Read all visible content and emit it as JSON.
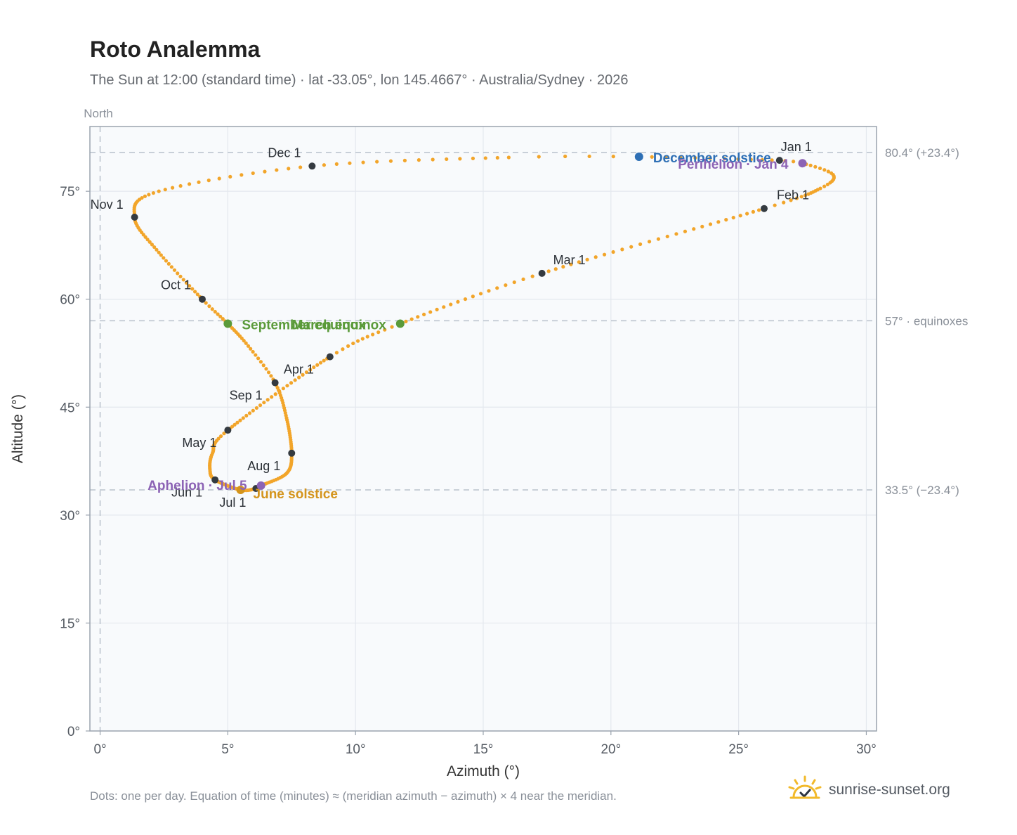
{
  "header": {
    "title": "Roto Analemma",
    "subtitle": "The Sun at 12:00 (standard time) · lat -33.05°, lon 145.4667° · Australia/Sydney · 2026"
  },
  "footer": {
    "note": "Dots: one per day. Equation of time (minutes) ≈ (meridian azimuth − azimuth) × 4 near the meridian.",
    "brand": "sunrise-sunset.org",
    "brand_icon": "sun-logo-icon"
  },
  "colors": {
    "path": "#f2a52a",
    "month_marker": "#343a40",
    "equinox": "#5a9a3a",
    "december_solstice": "#2e6fb5",
    "june_solstice": "#d4941c",
    "aphelion_perihelion": "#8c63b5",
    "plot_bg": "#f8fafc",
    "grid": "#e4e8ee",
    "reference_line": "#b9c1cb"
  },
  "chart_data": {
    "type": "scatter",
    "title": "Roto Analemma",
    "xlabel": "Azimuth (°)",
    "ylabel": "Altitude (°)",
    "xlim": [
      -0.4,
      30.4
    ],
    "ylim": [
      0,
      84
    ],
    "x_ticks": [
      0,
      5,
      10,
      15,
      20,
      25,
      30
    ],
    "x_tick_labels": [
      "0°",
      "5°",
      "10°",
      "15°",
      "20°",
      "25°",
      "30°"
    ],
    "y_ticks": [
      0,
      15,
      30,
      45,
      60,
      75
    ],
    "y_tick_labels": [
      "0°",
      "15°",
      "30°",
      "45°",
      "60°",
      "75°"
    ],
    "grid": true,
    "meridian": {
      "azimuth": 0,
      "label": "North"
    },
    "reference_lines": [
      {
        "altitude": 80.4,
        "label": "80.4° (+23.4°)"
      },
      {
        "altitude": 57,
        "label": "57° · equinoxes"
      },
      {
        "altitude": 33.5,
        "label": "33.5° (−23.4°)"
      }
    ],
    "path_anchors": [
      {
        "day": 1,
        "az": 26.6,
        "alt": 79.3
      },
      {
        "day": 4,
        "az": 27.5,
        "alt": 78.9
      },
      {
        "day": 12,
        "az": 28.7,
        "alt": 77.3
      },
      {
        "day": 20,
        "az": 28.2,
        "alt": 75.4
      },
      {
        "day": 32,
        "az": 26.0,
        "alt": 72.6
      },
      {
        "day": 60,
        "az": 17.3,
        "alt": 63.6
      },
      {
        "day": 79,
        "az": 11.75,
        "alt": 56.6
      },
      {
        "day": 91,
        "az": 9.0,
        "alt": 52.0
      },
      {
        "day": 121,
        "az": 5.0,
        "alt": 41.8
      },
      {
        "day": 135,
        "az": 4.4,
        "alt": 38.6
      },
      {
        "day": 145,
        "az": 4.3,
        "alt": 36.3
      },
      {
        "day": 152,
        "az": 4.5,
        "alt": 34.9
      },
      {
        "day": 172,
        "az": 5.5,
        "alt": 33.5
      },
      {
        "day": 182,
        "az": 6.1,
        "alt": 33.7
      },
      {
        "day": 186,
        "az": 6.3,
        "alt": 34.1
      },
      {
        "day": 200,
        "az": 7.3,
        "alt": 35.8
      },
      {
        "day": 213,
        "az": 7.5,
        "alt": 38.6
      },
      {
        "day": 230,
        "az": 7.3,
        "alt": 43.5
      },
      {
        "day": 244,
        "az": 6.85,
        "alt": 48.4
      },
      {
        "day": 255,
        "az": 5.8,
        "alt": 53.5
      },
      {
        "day": 265,
        "az": 5.0,
        "alt": 56.6
      },
      {
        "day": 274,
        "az": 4.0,
        "alt": 60.0
      },
      {
        "day": 290,
        "az": 2.3,
        "alt": 66.5
      },
      {
        "day": 305,
        "az": 1.35,
        "alt": 71.4
      },
      {
        "day": 320,
        "az": 2.3,
        "alt": 75.0
      },
      {
        "day": 335,
        "az": 8.3,
        "alt": 78.5
      },
      {
        "day": 350,
        "az": 16.0,
        "alt": 79.7
      },
      {
        "day": 355,
        "az": 21.1,
        "alt": 79.8
      },
      {
        "day": 366,
        "az": 26.6,
        "alt": 79.3
      }
    ],
    "month_markers": [
      {
        "label": "Jan 1",
        "az": 26.6,
        "alt": 79.3
      },
      {
        "label": "Feb 1",
        "az": 26.0,
        "alt": 72.6
      },
      {
        "label": "Mar 1",
        "az": 17.3,
        "alt": 63.6
      },
      {
        "label": "Apr 1",
        "az": 9.0,
        "alt": 52.0
      },
      {
        "label": "May 1",
        "az": 5.0,
        "alt": 41.8
      },
      {
        "label": "Jun 1",
        "az": 4.5,
        "alt": 34.9
      },
      {
        "label": "Jul 1",
        "az": 6.1,
        "alt": 33.7
      },
      {
        "label": "Aug 1",
        "az": 7.5,
        "alt": 38.6
      },
      {
        "label": "Sep 1",
        "az": 6.85,
        "alt": 48.4
      },
      {
        "label": "Oct 1",
        "az": 4.0,
        "alt": 60.0
      },
      {
        "label": "Nov 1",
        "az": 1.35,
        "alt": 71.4
      },
      {
        "label": "Dec 1",
        "az": 8.3,
        "alt": 78.5
      }
    ],
    "events": [
      {
        "label": "December solstice",
        "az": 21.1,
        "alt": 79.8,
        "kind": "december_solstice"
      },
      {
        "label": "Perihelion · Jan 4",
        "az": 27.5,
        "alt": 78.9,
        "kind": "aphelion_perihelion"
      },
      {
        "label": "March equinox",
        "az": 11.75,
        "alt": 56.6,
        "kind": "equinox"
      },
      {
        "label": "September equinox",
        "az": 5.0,
        "alt": 56.6,
        "kind": "equinox"
      },
      {
        "label": "June solstice",
        "az": 5.5,
        "alt": 33.5,
        "kind": "june_solstice"
      },
      {
        "label": "Aphelion · Jul 5",
        "az": 6.3,
        "alt": 34.1,
        "kind": "aphelion_perihelion"
      }
    ]
  }
}
